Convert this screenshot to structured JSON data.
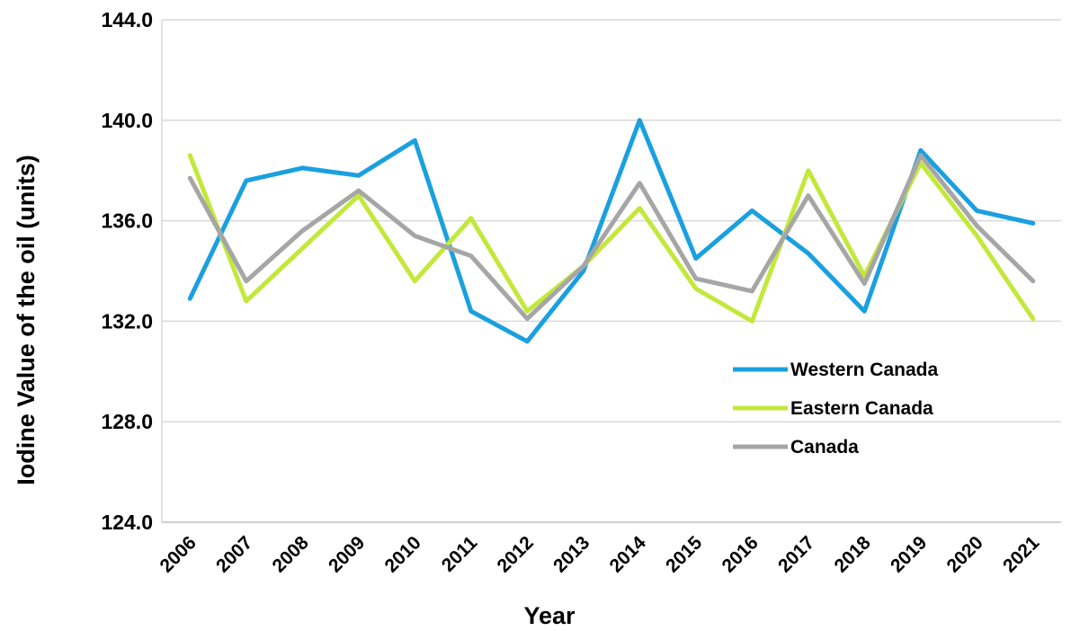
{
  "chart_data": {
    "type": "line",
    "title": "",
    "xlabel": "Year",
    "ylabel": "Iodine Value of the oil (units)",
    "categories": [
      "2006",
      "2007",
      "2008",
      "2009",
      "2010",
      "2011",
      "2012",
      "2013",
      "2014",
      "2015",
      "2016",
      "2017",
      "2018",
      "2019",
      "2020",
      "2021"
    ],
    "y_ticks": [
      "124.0",
      "128.0",
      "132.0",
      "136.0",
      "140.0",
      "144.0"
    ],
    "ylim": [
      124,
      144
    ],
    "grid": "horizontal",
    "legend_position": "right-center",
    "series": [
      {
        "name": "Western Canada",
        "color": "#1aa0e0",
        "values": [
          132.9,
          137.6,
          138.1,
          137.8,
          139.2,
          132.4,
          131.2,
          134.0,
          140.0,
          134.5,
          136.4,
          134.7,
          132.4,
          138.8,
          136.4,
          135.9
        ]
      },
      {
        "name": "Eastern Canada",
        "color": "#c3e83a",
        "values": [
          138.6,
          132.8,
          134.9,
          137.0,
          133.6,
          136.1,
          132.4,
          134.2,
          136.5,
          133.3,
          132.0,
          138.0,
          133.8,
          138.3,
          135.4,
          132.1
        ]
      },
      {
        "name": "Canada",
        "color": "#a6a6a6",
        "values": [
          137.7,
          133.6,
          135.6,
          137.2,
          135.4,
          134.6,
          132.1,
          134.2,
          137.5,
          133.7,
          133.2,
          137.0,
          133.5,
          138.6,
          135.8,
          133.6
        ]
      }
    ]
  }
}
